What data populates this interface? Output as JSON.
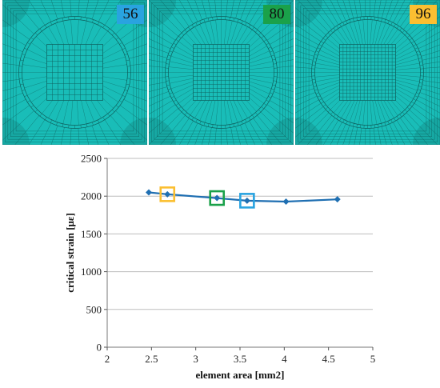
{
  "meshes": [
    {
      "label": "56",
      "badge_color": "#29a3e0",
      "grid_n": 10,
      "ring_n": 56
    },
    {
      "label": "80",
      "badge_color": "#1aa14a",
      "grid_n": 14,
      "ring_n": 80
    },
    {
      "label": "96",
      "badge_color": "#fbbf31",
      "grid_n": 16,
      "ring_n": 96
    }
  ],
  "colors": {
    "mesh_fill": "#19bdb8",
    "mesh_line": "#0d5f5c",
    "series": "#1f6fb2"
  },
  "chart_data": {
    "type": "line",
    "title": "",
    "xlabel": "element area [mm2]",
    "ylabel": "critical strain [με]",
    "xlim": [
      2,
      5
    ],
    "ylim": [
      0,
      2500
    ],
    "xticks": [
      "2",
      "2.5",
      "3",
      "3.5",
      "4",
      "4.5",
      "5"
    ],
    "yticks": [
      "0",
      "500",
      "1000",
      "1500",
      "2000",
      "2500"
    ],
    "grid": "horizontal",
    "series": [
      {
        "points": [
          {
            "x": 2.47,
            "y": 2050
          },
          {
            "x": 2.68,
            "y": 2025
          },
          {
            "x": 3.24,
            "y": 1975
          },
          {
            "x": 3.58,
            "y": 1940
          },
          {
            "x": 4.02,
            "y": 1928
          },
          {
            "x": 4.6,
            "y": 1958
          }
        ]
      }
    ],
    "highlights": [
      {
        "x": 2.68,
        "y": 2025,
        "color": "#fbbf31"
      },
      {
        "x": 3.24,
        "y": 1975,
        "color": "#1aa14a"
      },
      {
        "x": 3.58,
        "y": 1940,
        "color": "#29a3e0"
      }
    ]
  }
}
